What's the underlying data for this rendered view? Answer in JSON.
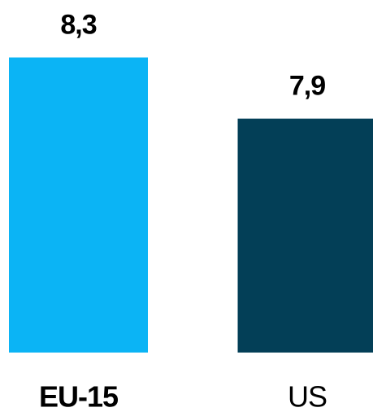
{
  "chart_data": {
    "type": "bar",
    "categories": [
      "EU-15",
      "US"
    ],
    "values": [
      8.3,
      7.9
    ],
    "value_labels": [
      "8,3",
      "7,9"
    ],
    "colors": [
      "#0bb4f5",
      "#033f57"
    ],
    "ylim": [
      6.37,
      8.5
    ]
  }
}
